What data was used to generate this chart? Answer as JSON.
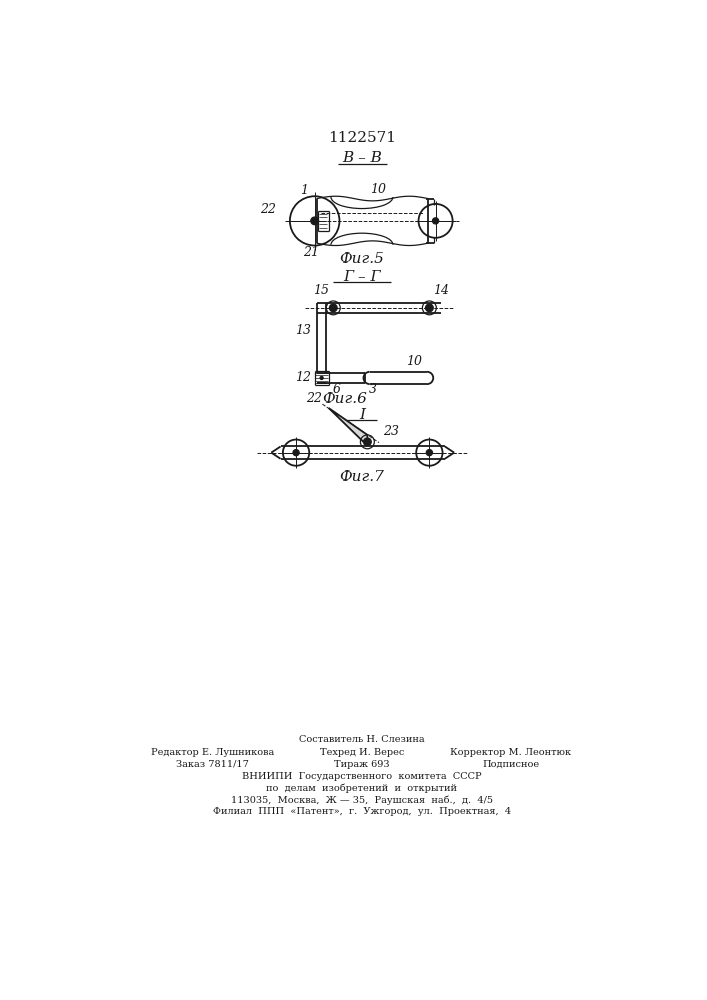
{
  "title": "1122571",
  "bg_color": "#ffffff",
  "line_color": "#1a1a1a",
  "fig5_label": "В – В",
  "fig5_caption": "Фиг.5",
  "fig6_label": "Г – Г",
  "fig6_caption": "Фиг.6",
  "fig7_label": "I",
  "fig7_caption": "Фиг.7",
  "footer_line0": "Составитель Н. Слезина",
  "footer_line1_left": "Редактор Е. Лушникова",
  "footer_line1_mid": "Техред И. Верес",
  "footer_line1_right": "Корректор М. Леонтюк",
  "footer_line2_left": "Заказ 7811/17",
  "footer_line2_mid": "Тираж 693",
  "footer_line2_right": "Подписное",
  "footer_lines_center": [
    "ВНИИПИ  Государственного  комитета  СССР",
    "по  делам  изобретений  и  открытий",
    "113035,  Москва,  Ж — 35,  Раушская  наб.,  д.  4/5",
    "Филиал  ППП  «Патент»,  г.  Ужгород,  ул.  Проектная,  4"
  ]
}
